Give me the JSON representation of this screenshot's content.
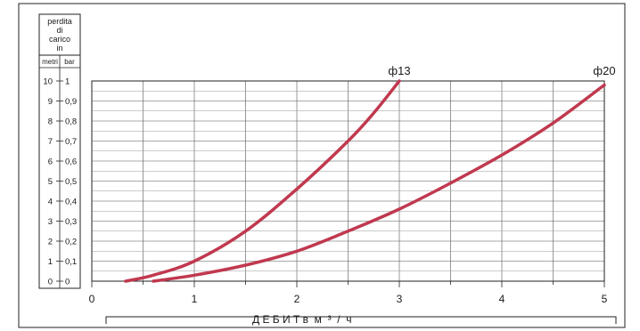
{
  "chart_data": {
    "type": "line",
    "header": {
      "line1": "perdita",
      "line2": "di",
      "line3": "carico",
      "line4": "in"
    },
    "left_units": {
      "metri": "metri",
      "bar": "bar"
    },
    "metri_ticks": [
      "0",
      "1",
      "2",
      "3",
      "4",
      "5",
      "6",
      "7",
      "8",
      "9",
      "10"
    ],
    "bar_ticks": [
      "0",
      "0,1",
      "0,2",
      "0,3",
      "0,4",
      "0,5",
      "0,6",
      "0,7",
      "0,8",
      "0,9",
      "1"
    ],
    "x_ticks": [
      "0",
      "1",
      "2",
      "3",
      "4",
      "5"
    ],
    "xlabel": "Д Е Б И Т в  м  ³  /  ч",
    "xlim": [
      0,
      5
    ],
    "ylim": [
      0,
      1
    ],
    "grid": true,
    "curve_color": "#c0394f",
    "series": [
      {
        "name": "ф13",
        "x": [
          0.33,
          0.6,
          1.0,
          1.5,
          2.0,
          2.5,
          2.75,
          3.0
        ],
        "y": [
          0.0,
          0.03,
          0.1,
          0.25,
          0.46,
          0.7,
          0.84,
          1.0
        ]
      },
      {
        "name": "ф20",
        "x": [
          0.6,
          1.0,
          1.5,
          2.0,
          2.5,
          3.0,
          3.5,
          4.0,
          4.5,
          5.0
        ],
        "y": [
          0.0,
          0.03,
          0.08,
          0.15,
          0.25,
          0.36,
          0.49,
          0.63,
          0.79,
          0.98
        ]
      }
    ]
  }
}
